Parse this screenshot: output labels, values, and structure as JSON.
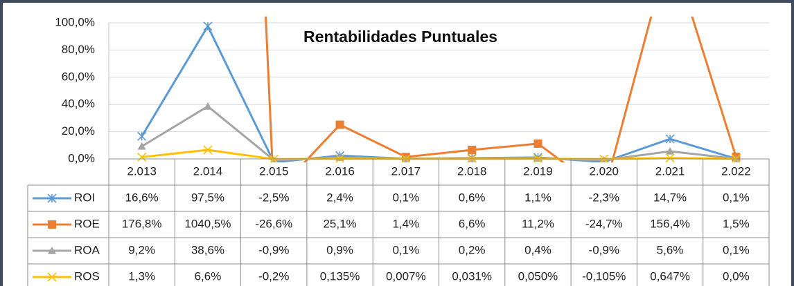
{
  "chart_data": {
    "type": "line",
    "title": "Rentabilidades Puntuales",
    "categories": [
      "2.013",
      "2.014",
      "2.015",
      "2.016",
      "2.017",
      "2.018",
      "2.019",
      "2.020",
      "2.021",
      "2.022"
    ],
    "ylim": [
      0,
      100
    ],
    "yticks": [
      {
        "value": 0,
        "label": "0,0%"
      },
      {
        "value": 20,
        "label": "20,0%"
      },
      {
        "value": 40,
        "label": "40,0%"
      },
      {
        "value": 60,
        "label": "60,0%"
      },
      {
        "value": 80,
        "label": "80,0%"
      },
      {
        "value": 100,
        "label": "100,0%"
      }
    ],
    "grid": true,
    "series": [
      {
        "name": "ROI",
        "color": "#5b9bd5",
        "marker": "asterisk",
        "values": [
          16.6,
          97.5,
          -2.5,
          2.4,
          0.1,
          0.6,
          1.1,
          -2.3,
          14.7,
          0.1
        ],
        "value_labels": [
          "16,6%",
          "97,5%",
          "-2,5%",
          "2,4%",
          "0,1%",
          "0,6%",
          "1,1%",
          "-2,3%",
          "14,7%",
          "0,1%"
        ]
      },
      {
        "name": "ROE",
        "color": "#ed7d31",
        "marker": "square",
        "values": [
          176.8,
          1040.5,
          -26.6,
          25.1,
          1.4,
          6.6,
          11.2,
          -24.7,
          156.4,
          1.5
        ],
        "value_labels": [
          "176,8%",
          "1040,5%",
          "-26,6%",
          "25,1%",
          "1,4%",
          "6,6%",
          "11,2%",
          "-24,7%",
          "156,4%",
          "1,5%"
        ]
      },
      {
        "name": "ROA",
        "color": "#a5a5a5",
        "marker": "triangle",
        "values": [
          9.2,
          38.6,
          -0.9,
          0.9,
          0.1,
          0.2,
          0.4,
          -0.9,
          5.6,
          0.1
        ],
        "value_labels": [
          "9,2%",
          "38,6%",
          "-0,9%",
          "0,9%",
          "0,1%",
          "0,2%",
          "0,4%",
          "-0,9%",
          "5,6%",
          "0,1%"
        ]
      },
      {
        "name": "ROS",
        "color": "#ffc000",
        "marker": "x",
        "values": [
          1.3,
          6.6,
          -0.2,
          0.135,
          0.007,
          0.031,
          0.05,
          -0.105,
          0.647,
          0.0
        ],
        "value_labels": [
          "1,3%",
          "6,6%",
          "-0,2%",
          "0,135%",
          "0,007%",
          "0,031%",
          "0,050%",
          "-0,105%",
          "0,647%",
          "0,0%"
        ]
      }
    ]
  }
}
